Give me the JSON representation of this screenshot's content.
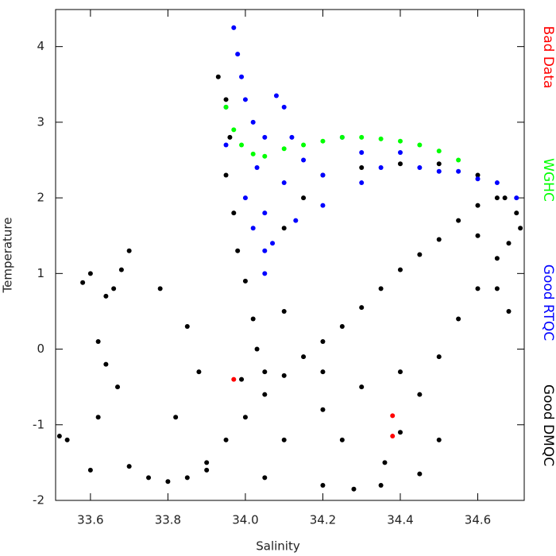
{
  "chart_data": {
    "type": "scatter",
    "x_label": "Salinity",
    "y_label": "Temperature",
    "xlim": [
      33.51,
      34.72
    ],
    "ylim": [
      -2,
      4.49
    ],
    "xticks": [
      33.6,
      33.8,
      {
        "value": 34,
        "label": "34.0"
      },
      34.2,
      34.4,
      34.6
    ],
    "yticks": [
      -2,
      -1,
      0,
      1,
      2,
      3,
      4
    ],
    "legend": "right",
    "series": [
      {
        "name": "Good DMQC",
        "color": "#000000",
        "x": [
          33.85,
          33.9,
          33.95,
          34.0,
          34.05,
          34.1,
          34.15,
          34.2,
          34.25,
          34.3,
          34.35,
          34.4,
          34.45,
          34.5,
          34.55,
          34.6,
          34.65,
          34.7,
          34.36,
          34.4,
          34.45,
          34.5,
          34.55,
          34.6,
          34.65,
          34.68,
          34.2,
          34.3,
          34.4,
          34.5,
          34.6,
          34.67,
          34.71,
          33.93,
          33.95,
          33.96,
          33.95,
          33.97,
          33.98,
          34.0,
          34.02,
          34.03,
          33.99,
          34.05,
          33.75,
          33.8,
          33.9,
          34.05,
          34.2,
          34.28,
          34.35,
          34.45,
          34.5,
          34.1,
          34.2,
          34.3,
          34.4,
          34.25,
          33.58,
          33.6,
          33.64,
          33.66,
          33.68,
          33.7,
          33.62,
          33.64,
          33.67,
          33.62,
          33.54,
          33.52,
          33.6,
          33.7,
          33.78,
          33.85,
          33.88,
          33.82,
          34.6,
          34.65,
          34.68,
          34.1,
          34.15,
          34.1,
          34.2
        ],
        "y": [
          -1.7,
          -1.5,
          -1.2,
          -0.9,
          -0.6,
          -0.35,
          -0.1,
          0.1,
          0.3,
          0.55,
          0.8,
          1.05,
          1.25,
          1.45,
          1.7,
          1.9,
          2.0,
          1.8,
          -1.5,
          -1.1,
          -0.6,
          -0.1,
          0.4,
          0.8,
          1.2,
          1.4,
          2.3,
          2.4,
          2.45,
          2.45,
          2.3,
          2.0,
          1.6,
          3.6,
          3.3,
          2.8,
          2.3,
          1.8,
          1.3,
          0.9,
          0.4,
          0.0,
          -0.4,
          -0.3,
          -1.7,
          -1.75,
          -1.6,
          -1.7,
          -1.8,
          -1.85,
          -1.8,
          -1.65,
          -1.2,
          -1.2,
          -0.8,
          -0.5,
          -0.3,
          -1.2,
          0.88,
          1.0,
          0.7,
          0.8,
          1.05,
          1.3,
          0.1,
          -0.2,
          -0.5,
          -0.9,
          -1.2,
          -1.15,
          -1.6,
          -1.55,
          0.8,
          0.3,
          -0.3,
          -0.9,
          1.5,
          0.8,
          0.5,
          1.6,
          2.0,
          0.5,
          -0.3
        ]
      },
      {
        "name": "Good RTQC",
        "color": "#0000ff",
        "x": [
          33.97,
          33.98,
          33.99,
          34.0,
          33.95,
          34.02,
          34.05,
          34.03,
          34.0,
          34.02,
          34.05,
          34.05,
          34.07,
          34.1,
          34.1,
          34.08,
          34.15,
          34.2,
          34.25,
          34.3,
          34.35,
          34.4,
          34.45,
          34.5,
          34.55,
          34.6,
          34.65,
          34.7,
          34.2,
          34.3,
          33.95,
          34.12,
          34.05,
          34.13
        ],
        "y": [
          4.25,
          3.9,
          3.6,
          3.3,
          3.2,
          3.0,
          2.8,
          2.4,
          2.0,
          1.6,
          1.3,
          1.0,
          1.4,
          2.2,
          3.2,
          3.35,
          2.5,
          2.3,
          2.8,
          2.6,
          2.4,
          2.6,
          2.4,
          2.35,
          2.35,
          2.25,
          2.2,
          2.0,
          1.9,
          2.2,
          2.7,
          2.8,
          1.8,
          1.7
        ]
      },
      {
        "name": "WGHC",
        "color": "#00ff00",
        "x": [
          33.95,
          33.97,
          33.99,
          34.02,
          34.05,
          34.1,
          34.15,
          34.2,
          34.25,
          34.3,
          34.35,
          34.4,
          34.45,
          34.5,
          34.55
        ],
        "y": [
          3.2,
          2.9,
          2.7,
          2.58,
          2.55,
          2.65,
          2.7,
          2.75,
          2.8,
          2.8,
          2.78,
          2.75,
          2.7,
          2.62,
          2.5
        ]
      },
      {
        "name": "Bad Data",
        "color": "#ff0000",
        "x": [
          33.97,
          34.38,
          34.38
        ],
        "y": [
          -0.4,
          -0.88,
          -1.15
        ]
      }
    ]
  }
}
